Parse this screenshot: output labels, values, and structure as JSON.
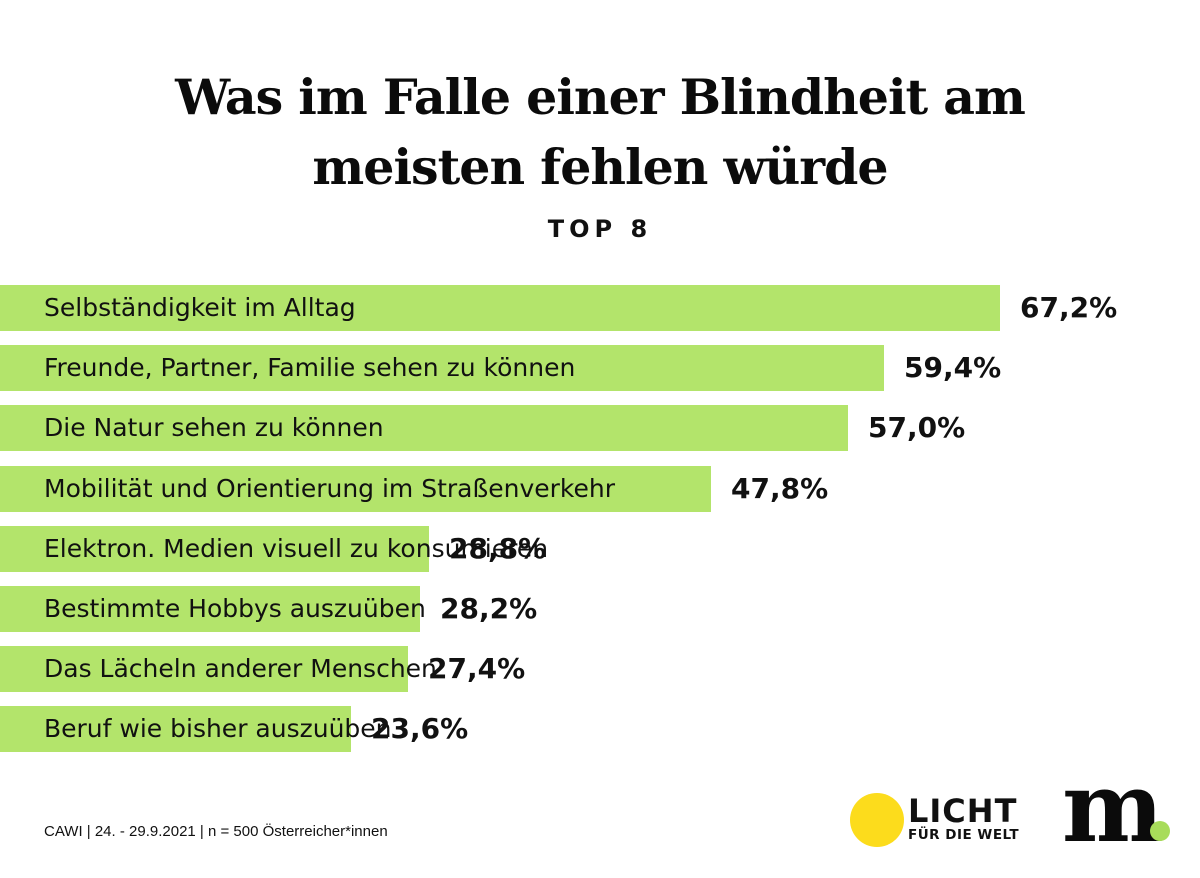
{
  "title_line1": "Was im Falle einer Blindheit am",
  "title_line2": "meisten fehlen würde",
  "subtitle": "TOP 8",
  "footnote": "CAWI | 24. - 29.9.2021 | n = 500 Österreicher*innen",
  "logos": {
    "licht_word": "LICHT",
    "licht_sub": "FÜR DIE WELT",
    "m_word": "m"
  },
  "colors": {
    "bar": "#b3e46b",
    "sun": "#fcdc1c",
    "dot": "#a8dc5a"
  },
  "chart_data": {
    "type": "bar",
    "orientation": "horizontal",
    "title": "Was im Falle einer Blindheit am meisten fehlen würde",
    "subtitle": "TOP 8",
    "categories": [
      "Selbständigkeit im Alltag",
      "Freunde, Partner, Familie sehen zu können",
      "Die Natur sehen zu können",
      "Mobilität und Orientierung im Straßenverkehr",
      "Elektron. Medien visuell zu konsumieren",
      "Bestimmte Hobbys auszuüben",
      "Das Lächeln anderer Menschen",
      "Beruf wie bisher auszuüben"
    ],
    "values": [
      67.2,
      59.4,
      57.0,
      47.8,
      28.8,
      28.2,
      27.4,
      23.6
    ],
    "value_labels": [
      "67,2%",
      "59,4%",
      "57,0%",
      "47,8%",
      "28,8%",
      "28,2%",
      "27,4%",
      "23,6%"
    ],
    "unit": "%",
    "grid": false,
    "legend": "none"
  }
}
